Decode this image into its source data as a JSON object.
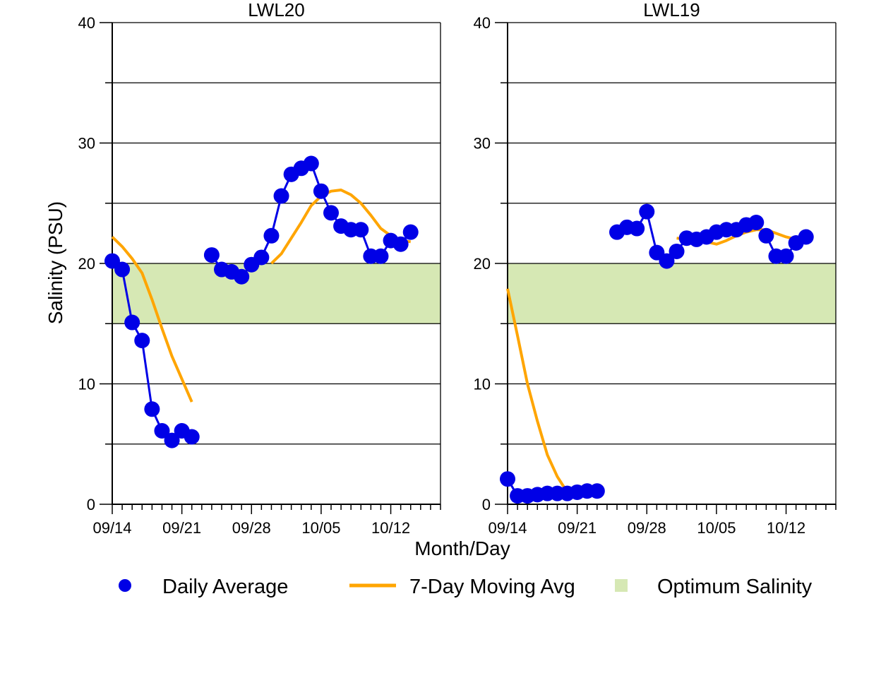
{
  "figure": {
    "ylabel": "Salinity (PSU)",
    "xlabel": "Month/Day"
  },
  "legend": {
    "daily_label": "Daily Average",
    "moving_label": "7-Day Moving Avg",
    "optimum_label": "Optimum Salinity"
  },
  "colors": {
    "daily": "#0000e6",
    "moving": "#ffa500",
    "optimum": "#d6e8b4"
  },
  "chart_data": [
    {
      "type": "line",
      "title": "LWL20",
      "xlabel": "Month/Day",
      "ylabel": "Salinity (PSU)",
      "ylim": [
        0,
        40
      ],
      "yticks": [
        0,
        10,
        20,
        30,
        40
      ],
      "gridlines_y": [
        5,
        10,
        15,
        20,
        25,
        30,
        35
      ],
      "x_ticks": [
        "09/14",
        "09/21",
        "09/28",
        "10/05",
        "10/12"
      ],
      "optimum_range": [
        15,
        20
      ],
      "series": [
        {
          "name": "Daily Average",
          "segments": [
            [
              [
                "09/14",
                20.2
              ],
              [
                "09/15",
                19.5
              ],
              [
                "09/16",
                15.1
              ],
              [
                "09/17",
                13.6
              ],
              [
                "09/18",
                7.9
              ],
              [
                "09/19",
                6.1
              ],
              [
                "09/20",
                5.3
              ],
              [
                "09/21",
                6.1
              ],
              [
                "09/22",
                5.6
              ]
            ],
            [
              [
                "09/24",
                20.7
              ],
              [
                "09/25",
                19.5
              ],
              [
                "09/26",
                19.3
              ],
              [
                "09/27",
                18.9
              ],
              [
                "09/28",
                19.9
              ],
              [
                "09/29",
                20.5
              ],
              [
                "09/30",
                22.3
              ],
              [
                "10/01",
                25.6
              ],
              [
                "10/02",
                27.4
              ],
              [
                "10/03",
                27.9
              ],
              [
                "10/04",
                28.3
              ],
              [
                "10/05",
                26.0
              ],
              [
                "10/06",
                24.2
              ],
              [
                "10/07",
                23.1
              ],
              [
                "10/08",
                22.8
              ],
              [
                "10/09",
                22.8
              ],
              [
                "10/10",
                20.6
              ],
              [
                "10/11",
                20.6
              ],
              [
                "10/12",
                21.9
              ],
              [
                "10/13",
                21.6
              ],
              [
                "10/14",
                22.6
              ]
            ]
          ]
        },
        {
          "name": "7-Day Moving Avg",
          "segments": [
            [
              [
                "09/14",
                22.2
              ],
              [
                "09/15",
                21.4
              ],
              [
                "09/16",
                20.4
              ],
              [
                "09/17",
                19.2
              ],
              [
                "09/18",
                17.0
              ],
              [
                "09/19",
                14.6
              ],
              [
                "09/20",
                12.3
              ],
              [
                "09/21",
                10.4
              ],
              [
                "09/22",
                8.5
              ]
            ],
            [
              [
                "09/30",
                20.0
              ],
              [
                "10/01",
                20.8
              ],
              [
                "10/02",
                22.1
              ],
              [
                "10/03",
                23.4
              ],
              [
                "10/04",
                24.8
              ],
              [
                "10/05",
                25.6
              ],
              [
                "10/06",
                26.0
              ],
              [
                "10/07",
                26.1
              ],
              [
                "10/08",
                25.7
              ],
              [
                "10/09",
                25.0
              ],
              [
                "10/10",
                24.0
              ],
              [
                "10/11",
                22.9
              ],
              [
                "10/12",
                22.3
              ],
              [
                "10/13",
                21.9
              ],
              [
                "10/14",
                21.8
              ]
            ]
          ]
        }
      ]
    },
    {
      "type": "line",
      "title": "LWL19",
      "xlabel": "Month/Day",
      "ylabel": "Salinity (PSU)",
      "ylim": [
        0,
        40
      ],
      "yticks": [
        0,
        10,
        20,
        30,
        40
      ],
      "gridlines_y": [
        5,
        10,
        15,
        20,
        25,
        30,
        35
      ],
      "x_ticks": [
        "09/14",
        "09/21",
        "09/28",
        "10/05",
        "10/12"
      ],
      "optimum_range": [
        15,
        20
      ],
      "series": [
        {
          "name": "Daily Average",
          "segments": [
            [
              [
                "09/14",
                2.1
              ],
              [
                "09/15",
                0.7
              ],
              [
                "09/16",
                0.7
              ],
              [
                "09/17",
                0.8
              ],
              [
                "09/18",
                0.9
              ],
              [
                "09/19",
                0.9
              ],
              [
                "09/20",
                0.9
              ],
              [
                "09/21",
                1.0
              ],
              [
                "09/22",
                1.1
              ],
              [
                "09/23",
                1.1
              ]
            ],
            [
              [
                "09/25",
                22.6
              ],
              [
                "09/26",
                23.0
              ],
              [
                "09/27",
                22.9
              ],
              [
                "09/28",
                24.3
              ],
              [
                "09/29",
                20.9
              ],
              [
                "09/30",
                20.2
              ],
              [
                "10/01",
                21.0
              ],
              [
                "10/02",
                22.1
              ],
              [
                "10/03",
                22.0
              ],
              [
                "10/04",
                22.2
              ],
              [
                "10/05",
                22.6
              ],
              [
                "10/06",
                22.8
              ],
              [
                "10/07",
                22.8
              ],
              [
                "10/08",
                23.2
              ],
              [
                "10/09",
                23.4
              ],
              [
                "10/10",
                22.3
              ],
              [
                "10/11",
                20.6
              ],
              [
                "10/12",
                20.6
              ],
              [
                "10/13",
                21.7
              ],
              [
                "10/14",
                22.2
              ]
            ]
          ]
        },
        {
          "name": "7-Day Moving Avg",
          "segments": [
            [
              [
                "09/14",
                17.9
              ],
              [
                "09/15",
                14.0
              ],
              [
                "09/16",
                10.0
              ],
              [
                "09/17",
                6.9
              ],
              [
                "09/18",
                4.1
              ],
              [
                "09/19",
                2.3
              ],
              [
                "09/20",
                1.0
              ],
              [
                "09/21",
                0.9
              ],
              [
                "09/22",
                0.9
              ],
              [
                "09/23",
                1.0
              ]
            ],
            [
              [
                "10/01",
                22.1
              ],
              [
                "10/02",
                22.0
              ],
              [
                "10/03",
                21.9
              ],
              [
                "10/04",
                21.8
              ],
              [
                "10/05",
                21.6
              ],
              [
                "10/06",
                21.9
              ],
              [
                "10/07",
                22.3
              ],
              [
                "10/08",
                22.6
              ],
              [
                "10/09",
                22.8
              ],
              [
                "10/10",
                22.8
              ],
              [
                "10/11",
                22.5
              ],
              [
                "10/12",
                22.2
              ],
              [
                "10/13",
                22.0
              ],
              [
                "10/14",
                21.9
              ]
            ]
          ]
        }
      ]
    }
  ]
}
